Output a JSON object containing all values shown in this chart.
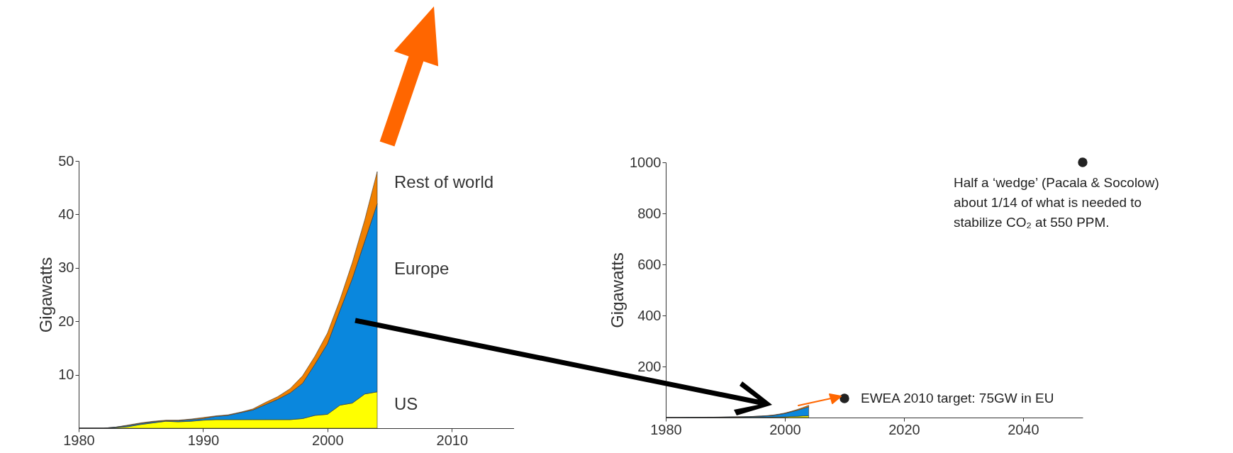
{
  "chart_data": [
    {
      "type": "area",
      "stacked": true,
      "ylabel": "Gigawatts",
      "xlim": [
        1980,
        2015
      ],
      "ylim": [
        0,
        50
      ],
      "xticks": [
        1980,
        1990,
        2000,
        2010
      ],
      "yticks": [
        10,
        20,
        30,
        40,
        50
      ],
      "x": [
        1980,
        1981,
        1982,
        1983,
        1984,
        1985,
        1986,
        1987,
        1988,
        1989,
        1990,
        1991,
        1992,
        1993,
        1994,
        1995,
        1996,
        1997,
        1998,
        1999,
        2000,
        2001,
        2002,
        2003,
        2004
      ],
      "series": [
        {
          "name": "US",
          "color": "#ffff00",
          "values": [
            0,
            0,
            0,
            0.1,
            0.3,
            0.7,
            1,
            1.3,
            1.2,
            1.3,
            1.5,
            1.6,
            1.6,
            1.6,
            1.6,
            1.6,
            1.6,
            1.6,
            1.8,
            2.4,
            2.6,
            4.3,
            4.7,
            6.4,
            6.8
          ]
        },
        {
          "name": "Europe",
          "color": "#0a87dd",
          "values": [
            0,
            0,
            0,
            0.1,
            0.2,
            0.2,
            0.2,
            0.1,
            0.2,
            0.3,
            0.3,
            0.6,
            0.8,
            1.3,
            1.8,
            2.8,
            3.8,
            5,
            6.6,
            9.6,
            13.2,
            17.7,
            23.3,
            28.6,
            35.2
          ]
        },
        {
          "name": "Rest of world",
          "color": "#f08000",
          "values": [
            0,
            0,
            0,
            0,
            0.1,
            0.1,
            0.1,
            0.1,
            0.1,
            0.1,
            0.2,
            0.1,
            0.1,
            0.1,
            0.2,
            0.4,
            0.5,
            0.8,
            1.4,
            1.5,
            2,
            2,
            3,
            4,
            6
          ]
        }
      ]
    },
    {
      "type": "area",
      "stacked": true,
      "ylabel": "Gigawatts",
      "xlim": [
        1980,
        2050
      ],
      "ylim": [
        0,
        1000
      ],
      "xticks": [
        1980,
        2000,
        2020,
        2040
      ],
      "yticks": [
        200,
        400,
        600,
        800,
        1000
      ],
      "x": [
        1980,
        1981,
        1982,
        1983,
        1984,
        1985,
        1986,
        1987,
        1988,
        1989,
        1990,
        1991,
        1992,
        1993,
        1994,
        1995,
        1996,
        1997,
        1998,
        1999,
        2000,
        2001,
        2002,
        2003,
        2004
      ],
      "series": [
        {
          "color": "#ffff00",
          "values": [
            0,
            0,
            0,
            0.1,
            0.3,
            0.7,
            1,
            1.3,
            1.2,
            1.3,
            1.5,
            1.6,
            1.6,
            1.6,
            1.6,
            1.6,
            1.6,
            1.6,
            1.8,
            2.4,
            2.6,
            4.3,
            4.7,
            6.4,
            6.8
          ]
        },
        {
          "color": "#0a87dd",
          "values": [
            0,
            0,
            0,
            0.1,
            0.2,
            0.2,
            0.2,
            0.1,
            0.2,
            0.3,
            0.3,
            0.6,
            0.8,
            1.3,
            1.8,
            2.8,
            3.8,
            5,
            6.6,
            9.6,
            13.2,
            17.7,
            23.3,
            28.6,
            35.2
          ]
        },
        {
          "color": "#f08000",
          "values": [
            0,
            0,
            0,
            0,
            0.1,
            0.1,
            0.1,
            0.1,
            0.1,
            0.1,
            0.2,
            0.1,
            0.1,
            0.1,
            0.2,
            0.4,
            0.5,
            0.8,
            1.4,
            1.5,
            2,
            2,
            3,
            4,
            6
          ]
        },
        {
          "type": "scatter",
          "marker": "circle",
          "color": "#222222",
          "x": [
            2010,
            2050
          ],
          "values": [
            75,
            1000
          ]
        }
      ],
      "annotations": [
        {
          "text": "EWEA 2010 target: 75GW in EU",
          "x": 2010,
          "y": 75
        },
        {
          "text": "Half a ‘wedge’ (Pacala & Socolow)\nabout 1/14 of what is needed to\nstabilize CO₂ at 550 PPM.",
          "x": 2050,
          "y": 1000
        }
      ]
    }
  ]
}
